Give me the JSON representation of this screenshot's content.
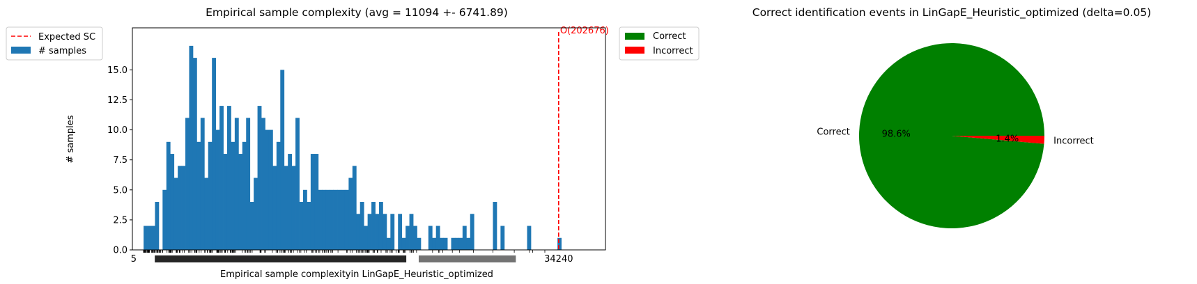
{
  "chart_data": [
    {
      "type": "bar",
      "title": "Empirical sample complexity (avg = 11094 +- 6741.89)",
      "xlabel": "Empirical sample complexityin LinGapE_Heuristic_optimized",
      "ylabel": "# samples",
      "ylim": [
        0,
        18.5
      ],
      "yticks": [
        "0.0",
        "2.5",
        "5.0",
        "7.5",
        "10.0",
        "12.5",
        "15.0"
      ],
      "ytick_values": [
        0,
        2.5,
        5,
        7.5,
        10,
        12.5,
        15
      ],
      "xlim": [
        0,
        38000
      ],
      "x_visible_tick_labels": [
        "5",
        "34240"
      ],
      "x_tick_values_visible": [
        5,
        34240
      ],
      "bar_width": 305,
      "bin_starts": [
        0,
        305,
        610,
        915,
        1220,
        1525,
        1830,
        2135,
        2440,
        2745,
        3050,
        3355,
        3660,
        3965,
        4270,
        4575,
        4880,
        5185,
        5490,
        5795,
        6100,
        6405,
        6710,
        7015,
        7320,
        7625,
        7930,
        8235,
        8540,
        8845,
        9150,
        9455,
        9760,
        10065,
        10370,
        10675,
        10980,
        11285,
        11590,
        11895,
        12200,
        12505,
        12810,
        13115,
        13420,
        13725,
        14030,
        14335,
        14640,
        14945,
        15250,
        15555,
        15860,
        16165,
        16470,
        16775,
        17080,
        17385,
        17690,
        17995,
        18300,
        18605,
        18910,
        19215,
        19520,
        19825,
        20130,
        20435,
        20740,
        21045,
        21350,
        21655,
        21960,
        22265,
        22570,
        22875,
        23180,
        23485,
        23790,
        24095,
        24400,
        24705,
        25010,
        25315,
        25620,
        25925,
        26230,
        26535,
        26840,
        27145,
        27450,
        27755,
        28060,
        28365,
        28670,
        28975,
        29280,
        29585,
        29890,
        30195,
        30500,
        30805,
        31110,
        31415,
        31720,
        32025,
        32330,
        32635,
        32940,
        33245,
        33550,
        33855
      ],
      "values": [
        2,
        2,
        2,
        4,
        0,
        5,
        9,
        8,
        6,
        7,
        7,
        11,
        17,
        16,
        9,
        11,
        6,
        9,
        16,
        10,
        12,
        8,
        12,
        9,
        11,
        8,
        9,
        11,
        4,
        6,
        12,
        11,
        10,
        10,
        7,
        9,
        15,
        7,
        8,
        7,
        11,
        4,
        5,
        4,
        8,
        8,
        5,
        5,
        5,
        5,
        5,
        5,
        5,
        5,
        6,
        7,
        3,
        4,
        2,
        3,
        4,
        3,
        4,
        3,
        1,
        3,
        0,
        3,
        1,
        2,
        3,
        2,
        1,
        0,
        0,
        2,
        1,
        2,
        1,
        1,
        0,
        1,
        1,
        1,
        2,
        1,
        3,
        0,
        0,
        0,
        0,
        0,
        4,
        0,
        2,
        0,
        0,
        0,
        0,
        0,
        0,
        2,
        0,
        0,
        0,
        0,
        0,
        0,
        0,
        1
      ],
      "series": [
        {
          "name": "# samples",
          "color": "#1f77b4"
        }
      ],
      "reference_line": {
        "name": "Expected SC",
        "x": 34240,
        "color": "#ff0000",
        "style": "dashed",
        "label": "O(202676)"
      },
      "legend": [
        "Expected SC",
        "# samples"
      ],
      "legend_placement": "upper-left-outside",
      "grid": false
    },
    {
      "type": "pie",
      "title": "Correct identification events in LinGapE_Heuristic_optimized (delta=0.05)",
      "slices": [
        {
          "label": "Correct",
          "value": 98.6,
          "pct_label": "98.6%",
          "color": "#008000"
        },
        {
          "label": "Incorrect",
          "value": 1.4,
          "pct_label": "1.4%",
          "color": "#ff0000"
        }
      ],
      "legend": [
        "Correct",
        "Incorrect"
      ],
      "legend_placement": "upper-left-outside"
    }
  ]
}
